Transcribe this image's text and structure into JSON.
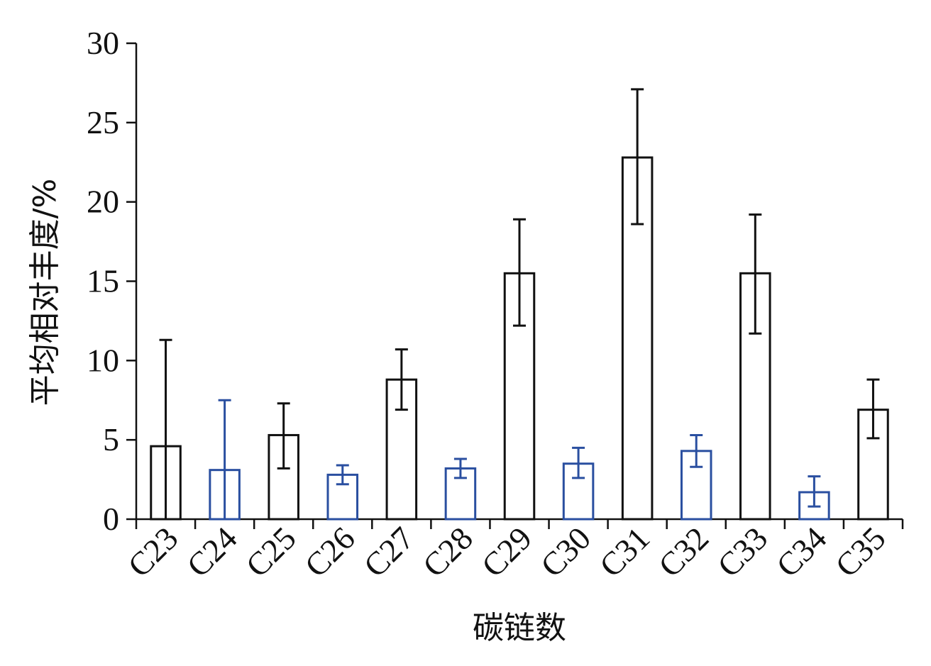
{
  "chart_data": {
    "type": "bar",
    "xlabel": "碳链数",
    "ylabel": "平均相对丰度/%",
    "ylim": [
      0,
      30
    ],
    "yticks": [
      0,
      5,
      10,
      15,
      20,
      25,
      30
    ],
    "grid": false,
    "legend": "none",
    "colors": {
      "odd": "#111111",
      "even": "#2a4fa0",
      "axis": "#111111"
    },
    "categories": [
      "C23",
      "C24",
      "C25",
      "C26",
      "C27",
      "C28",
      "C29",
      "C30",
      "C31",
      "C32",
      "C33",
      "C34",
      "C35"
    ],
    "values": [
      4.6,
      3.1,
      5.3,
      2.8,
      8.8,
      3.2,
      15.5,
      3.5,
      22.8,
      4.3,
      15.5,
      1.7,
      6.9
    ],
    "error_low": [
      0,
      0,
      3.2,
      2.2,
      6.9,
      2.6,
      12.2,
      2.6,
      18.6,
      3.3,
      11.7,
      0.8,
      5.1
    ],
    "error_high": [
      11.3,
      7.5,
      7.3,
      3.4,
      10.7,
      3.8,
      18.9,
      4.5,
      27.1,
      5.3,
      19.2,
      2.7,
      8.8
    ]
  }
}
